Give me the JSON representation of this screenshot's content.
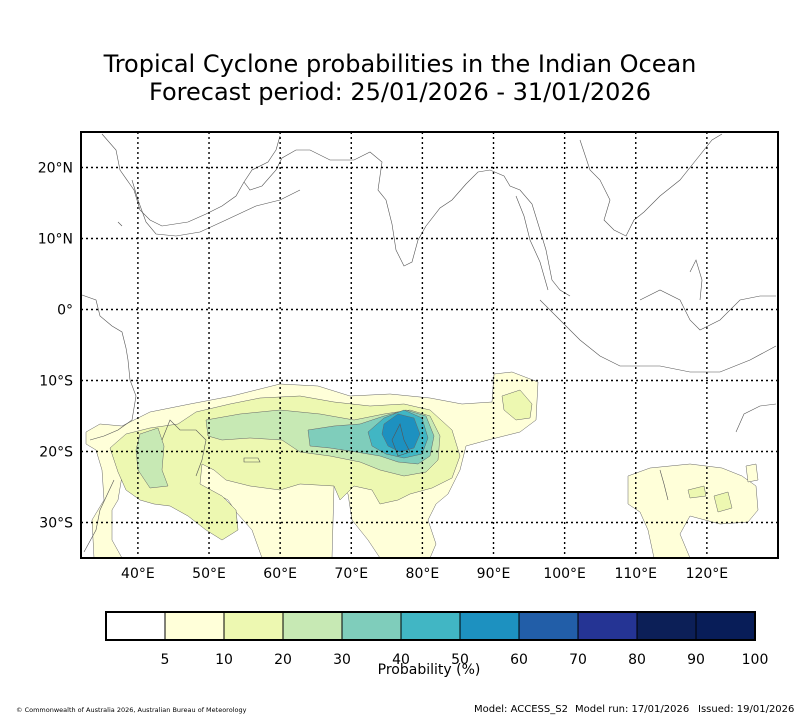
{
  "title": {
    "line1": "Tropical Cyclone probabilities in the Indian Ocean",
    "line2": "Forecast period: 25/01/2026 - 31/01/2026"
  },
  "map": {
    "lat_labels": [
      "20°N",
      "10°N",
      "0°",
      "10°S",
      "20°S",
      "30°S"
    ],
    "lon_labels": [
      "40°E",
      "50°E",
      "60°E",
      "70°E",
      "80°E",
      "90°E",
      "100°E",
      "110°E",
      "120°E"
    ],
    "lat_values": [
      20,
      10,
      0,
      -10,
      -20,
      -30
    ],
    "lon_values": [
      40,
      50,
      60,
      70,
      80,
      90,
      100,
      110,
      120
    ],
    "lon_range": [
      32,
      130
    ],
    "lat_range": [
      -35,
      25
    ]
  },
  "legend": {
    "label": "Probability (%)",
    "ticks": [
      "5",
      "10",
      "20",
      "30",
      "40",
      "50",
      "60",
      "70",
      "80",
      "90",
      "100"
    ],
    "colors": [
      "#ffffff",
      "#ffffd9",
      "#edf8b1",
      "#c7e9b4",
      "#7fcdbb",
      "#41b6c4",
      "#1d91c0",
      "#225ea8",
      "#253494",
      "#0c1f57",
      "#081d58"
    ]
  },
  "footer": {
    "copyright": "© Commonwealth of Australia 2026, Australian Bureau of Meteorology",
    "model": "Model: ACCESS_S2",
    "model_run": "Model run: 17/01/2026",
    "issued": "Issued: 19/01/2026"
  }
}
